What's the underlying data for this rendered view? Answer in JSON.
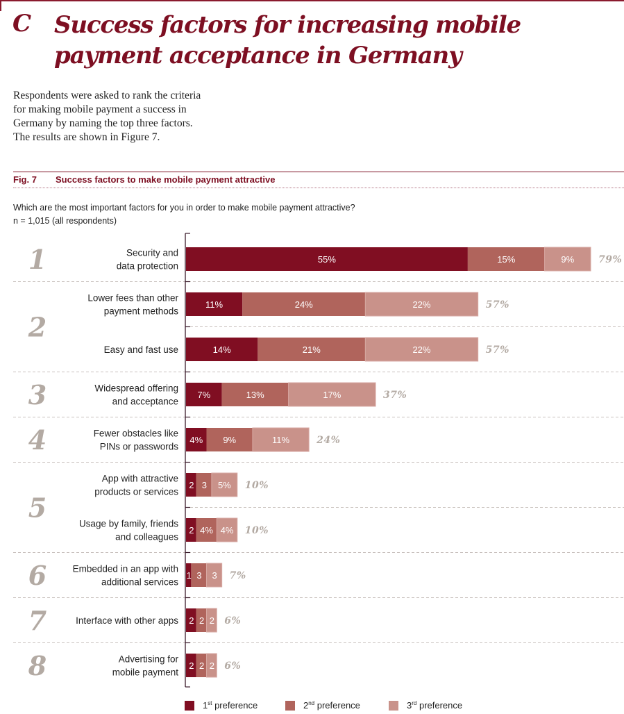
{
  "header": {
    "section_letter": "C",
    "section_title": "Success factors for increasing mobile payment acceptance in Germany",
    "intro": "Respondents were asked to rank the criteria for making mobile payment a success in Germany by naming the top three factors. The results are shown in Figure 7."
  },
  "figure": {
    "number": "Fig. 7",
    "title": "Success factors to make mobile payment attractive",
    "question": "Which are the most important factors for you in order to make mobile payment attractive?",
    "sample": "n = 1,015 (all respondents)"
  },
  "colors": {
    "accent": "#7d0f22",
    "first": "#800e22",
    "second": "#b0645c",
    "third": "#c9928a",
    "rank_number": "#b3aaa3",
    "total_label": "#b3aaa3",
    "separator": "#c8c0bc"
  },
  "legend": [
    {
      "ordinal": "1",
      "suffix": "st",
      "label": "preference",
      "series": "first"
    },
    {
      "ordinal": "2",
      "suffix": "nd",
      "label": "preference",
      "series": "second"
    },
    {
      "ordinal": "3",
      "suffix": "rd",
      "label": "preference",
      "series": "third"
    }
  ],
  "chart_data": {
    "type": "bar",
    "orientation": "horizontal",
    "stacked": true,
    "title": "Success factors to make mobile payment attractive",
    "xlabel": "",
    "ylabel": "",
    "xlim": [
      0,
      79
    ],
    "grid": false,
    "legend_position": "bottom",
    "series": [
      {
        "name": "1st preference",
        "key": "first"
      },
      {
        "name": "2nd preference",
        "key": "second"
      },
      {
        "name": "3rd preference",
        "key": "third"
      }
    ],
    "ranks": [
      {
        "rank": "1",
        "items": [
          {
            "label": [
              "Security and",
              "data protection"
            ],
            "values": [
              55,
              15,
              9
            ],
            "value_labels": [
              "55%",
              "15%",
              "9%"
            ],
            "total": "79%"
          }
        ]
      },
      {
        "rank": "2",
        "items": [
          {
            "label": [
              "Lower fees than other",
              "payment methods"
            ],
            "values": [
              11,
              24,
              22
            ],
            "value_labels": [
              "11%",
              "24%",
              "22%"
            ],
            "total": "57%"
          },
          {
            "label": [
              "Easy and fast use"
            ],
            "values": [
              14,
              21,
              22
            ],
            "value_labels": [
              "14%",
              "21%",
              "22%"
            ],
            "total": "57%"
          }
        ]
      },
      {
        "rank": "3",
        "items": [
          {
            "label": [
              "Widespread offering",
              "and acceptance"
            ],
            "values": [
              7,
              13,
              17
            ],
            "value_labels": [
              "7%",
              "13%",
              "17%"
            ],
            "total": "37%"
          }
        ]
      },
      {
        "rank": "4",
        "items": [
          {
            "label": [
              "Fewer obstacles like",
              "PINs or passwords"
            ],
            "values": [
              4,
              9,
              11
            ],
            "value_labels": [
              "4%",
              "9%",
              "11%"
            ],
            "total": "24%"
          }
        ]
      },
      {
        "rank": "5",
        "items": [
          {
            "label": [
              "App with attractive",
              "products or services"
            ],
            "values": [
              2,
              3,
              5
            ],
            "value_labels": [
              "2",
              "3",
              "5%"
            ],
            "total": "10%"
          },
          {
            "label": [
              "Usage by family, friends",
              "and colleagues"
            ],
            "values": [
              2,
              4,
              4
            ],
            "value_labels": [
              "2",
              "4%",
              "4%"
            ],
            "total": "10%"
          }
        ]
      },
      {
        "rank": "6",
        "items": [
          {
            "label": [
              "Embedded in an app with",
              "additional services"
            ],
            "values": [
              1,
              3,
              3
            ],
            "value_labels": [
              "1",
              "3",
              "3"
            ],
            "total": "7%"
          }
        ]
      },
      {
        "rank": "7",
        "items": [
          {
            "label": [
              "Interface with other apps"
            ],
            "values": [
              2,
              2,
              2
            ],
            "value_labels": [
              "2",
              "2",
              "2"
            ],
            "total": "6%"
          }
        ]
      },
      {
        "rank": "8",
        "items": [
          {
            "label": [
              "Advertising for",
              "mobile payment"
            ],
            "values": [
              2,
              2,
              2
            ],
            "value_labels": [
              "2",
              "2",
              "2"
            ],
            "total": "6%"
          }
        ]
      }
    ]
  }
}
